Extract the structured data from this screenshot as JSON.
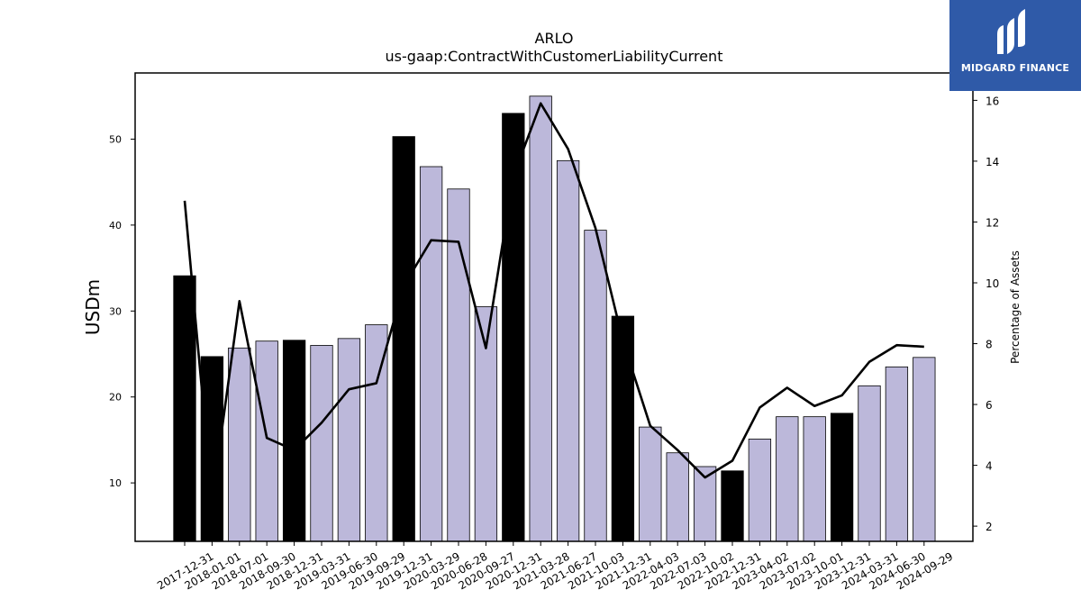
{
  "chart_data": {
    "type": "bar",
    "title": "ARLO",
    "subtitle": "us-gaap:ContractWithCustomerLiabilityCurrent",
    "ylabel": "USDm",
    "ylabel_right": "Percentage of Assets",
    "categories": [
      "2017-12-31",
      "2018-01-01",
      "2018-07-01",
      "2018-09-30",
      "2018-12-31",
      "2019-03-31",
      "2019-06-30",
      "2019-09-29",
      "2019-12-31",
      "2020-03-29",
      "2020-06-28",
      "2020-09-27",
      "2020-12-31",
      "2021-03-28",
      "2021-06-27",
      "2021-10-03",
      "2021-12-31",
      "2022-04-03",
      "2022-07-03",
      "2022-10-02",
      "2022-12-31",
      "2023-04-02",
      "2023-07-02",
      "2023-10-01",
      "2023-12-31",
      "2024-03-31",
      "2024-06-30",
      "2024-09-29"
    ],
    "series": [
      {
        "axis": "left",
        "kind": "bar",
        "values": [
          34.1,
          24.7,
          25.7,
          26.5,
          26.6,
          26.0,
          26.8,
          28.4,
          50.3,
          46.8,
          44.2,
          30.5,
          53.0,
          55.0,
          47.5,
          39.4,
          29.4,
          16.5,
          13.5,
          11.9,
          11.4,
          15.1,
          17.7,
          17.7,
          18.1,
          21.3,
          23.5,
          24.6
        ],
        "highlight": [
          true,
          true,
          false,
          false,
          true,
          false,
          false,
          false,
          true,
          false,
          false,
          false,
          true,
          false,
          false,
          false,
          true,
          false,
          false,
          false,
          true,
          false,
          false,
          false,
          true,
          false,
          false,
          false
        ]
      },
      {
        "axis": "right",
        "kind": "line",
        "values": [
          12.7,
          2.8,
          9.4,
          4.9,
          4.5,
          5.4,
          6.5,
          6.7,
          9.9,
          11.4,
          11.35,
          7.85,
          13.5,
          15.9,
          14.4,
          11.8,
          8.1,
          5.3,
          4.5,
          3.6,
          4.15,
          5.9,
          6.55,
          5.95,
          6.3,
          7.4,
          7.95,
          7.9
        ]
      }
    ],
    "ylim": [
      3.2,
      57.7
    ],
    "ylim_right": [
      1.5,
      16.9
    ],
    "yticks": [
      10,
      20,
      30,
      40,
      50
    ],
    "yticks_right": [
      2,
      4,
      6,
      8,
      10,
      12,
      14,
      16
    ],
    "grid": false,
    "colors": {
      "bar": "#bcb8da",
      "bar_highlight": "#000000",
      "line": "#000000",
      "edge": "#000000"
    }
  },
  "logo": {
    "text": "MIDGARD FINANCE",
    "background": "#2f5aa8"
  }
}
